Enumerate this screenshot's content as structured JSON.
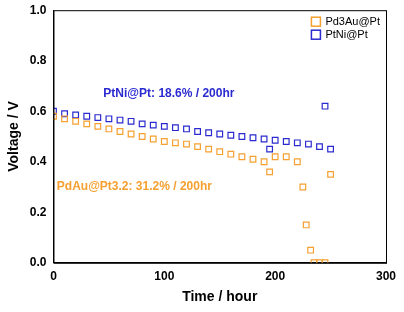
{
  "chart_data": {
    "type": "scatter",
    "x_label": "Time / hour",
    "y_label": "Voltage / V",
    "xlim": [
      0,
      300
    ],
    "xticks": [
      0,
      100,
      200,
      300
    ],
    "ylim": [
      0,
      1
    ],
    "yticks": [
      {
        "value": 0,
        "label": "0.0"
      },
      0.2,
      0.4,
      0.6,
      0.8,
      {
        "value": 1,
        "label": "1.0"
      }
    ],
    "grid": false,
    "legend": "upper right",
    "marker": "square",
    "series": [
      {
        "name": "Pd3Au@Pt",
        "color": "#f5a030",
        "x": [
          0,
          10,
          20,
          30,
          40,
          50,
          60,
          70,
          80,
          90,
          100,
          110,
          120,
          130,
          140,
          150,
          160,
          170,
          180,
          190,
          195,
          200,
          210,
          220,
          225,
          228,
          232,
          235,
          240,
          245,
          250
        ],
        "values": [
          0.58,
          0.57,
          0.56,
          0.55,
          0.54,
          0.53,
          0.52,
          0.51,
          0.5,
          0.49,
          0.48,
          0.475,
          0.47,
          0.46,
          0.45,
          0.44,
          0.43,
          0.42,
          0.41,
          0.4,
          0.36,
          0.42,
          0.42,
          0.4,
          0.3,
          0.15,
          0.05,
          0.0,
          0.0,
          0.0,
          0.35
        ]
      },
      {
        "name": "PtNi@Pt",
        "color": "#2a2ad0",
        "x": [
          0,
          10,
          20,
          30,
          40,
          50,
          60,
          70,
          80,
          90,
          100,
          110,
          120,
          130,
          140,
          150,
          160,
          170,
          180,
          190,
          195,
          200,
          210,
          220,
          230,
          240,
          245,
          250
        ],
        "values": [
          0.6,
          0.59,
          0.585,
          0.58,
          0.575,
          0.57,
          0.565,
          0.56,
          0.55,
          0.545,
          0.54,
          0.535,
          0.53,
          0.52,
          0.515,
          0.51,
          0.505,
          0.5,
          0.495,
          0.49,
          0.45,
          0.485,
          0.48,
          0.475,
          0.47,
          0.46,
          0.62,
          0.45
        ]
      }
    ],
    "annotations": [
      {
        "text": "PtNi@Pt: 18.6% / 200hr",
        "x": 45,
        "y": 0.67,
        "color": "#2a2ad0"
      },
      {
        "text": "PdAu@Pt3.2: 31.2% / 200hr",
        "x": 3,
        "y": 0.3,
        "color": "#f5a030"
      }
    ]
  }
}
